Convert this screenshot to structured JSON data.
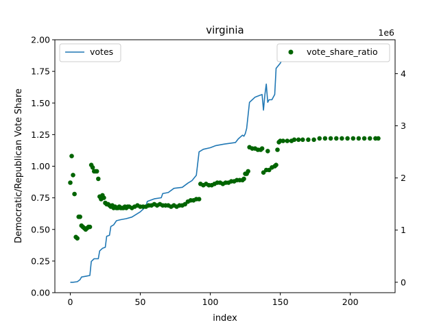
{
  "chart_data": {
    "type": "line",
    "title": "virginia",
    "xlabel": "index",
    "ylabel": "Democratic/Republican Vote Share",
    "y2_multiplier": "1e6",
    "xlim": [
      -11,
      232
    ],
    "ylim": [
      0,
      2.0
    ],
    "y2lim": [
      -0.2,
      4.65
    ],
    "x_ticks": [
      0,
      50,
      100,
      150,
      200
    ],
    "x_tick_labels": [
      "0",
      "50",
      "100",
      "150",
      "200"
    ],
    "y_ticks": [
      0,
      0.25,
      0.5,
      0.75,
      1.0,
      1.25,
      1.5,
      1.75,
      2.0
    ],
    "y_tick_labels": [
      "0.00",
      "0.25",
      "0.50",
      "0.75",
      "1.00",
      "1.25",
      "1.50",
      "1.75",
      "2.00"
    ],
    "y2_ticks": [
      0,
      1,
      2,
      3,
      4
    ],
    "y2_tick_labels": [
      "0",
      "1",
      "2",
      "3",
      "4"
    ],
    "grid": false,
    "legend": [
      {
        "label": "votes",
        "position": "upper-left",
        "marker": "line",
        "color": "#1f77b4"
      },
      {
        "label": "vote_share_ratio",
        "position": "upper-right",
        "marker": "dot",
        "color": "#006400"
      }
    ],
    "series": [
      {
        "name": "votes",
        "kind": "line",
        "axis": "right",
        "color": "#1f77b4",
        "points": [
          [
            0,
            0.0
          ],
          [
            2,
            0.0
          ],
          [
            5,
            0.01
          ],
          [
            7,
            0.05
          ],
          [
            8,
            0.1
          ],
          [
            12,
            0.12
          ],
          [
            14,
            0.13
          ],
          [
            15,
            0.4
          ],
          [
            17,
            0.45
          ],
          [
            20,
            0.45
          ],
          [
            21,
            0.6
          ],
          [
            23,
            0.65
          ],
          [
            25,
            0.67
          ],
          [
            26,
            0.88
          ],
          [
            28,
            0.9
          ],
          [
            29,
            1.07
          ],
          [
            31,
            1.1
          ],
          [
            33,
            1.18
          ],
          [
            36,
            1.2
          ],
          [
            40,
            1.22
          ],
          [
            44,
            1.25
          ],
          [
            50,
            1.35
          ],
          [
            54,
            1.45
          ],
          [
            55,
            1.55
          ],
          [
            60,
            1.6
          ],
          [
            65,
            1.62
          ],
          [
            66,
            1.7
          ],
          [
            70,
            1.72
          ],
          [
            74,
            1.8
          ],
          [
            80,
            1.82
          ],
          [
            84,
            1.9
          ],
          [
            87,
            1.95
          ],
          [
            90,
            2.05
          ],
          [
            92,
            2.5
          ],
          [
            95,
            2.55
          ],
          [
            100,
            2.58
          ],
          [
            104,
            2.62
          ],
          [
            110,
            2.65
          ],
          [
            118,
            2.68
          ],
          [
            120,
            2.75
          ],
          [
            123,
            2.82
          ],
          [
            124,
            2.8
          ],
          [
            125,
            2.85
          ],
          [
            126,
            2.95
          ],
          [
            128,
            3.45
          ],
          [
            130,
            3.5
          ],
          [
            132,
            3.55
          ],
          [
            135,
            3.58
          ],
          [
            137,
            3.6
          ],
          [
            138,
            3.3
          ],
          [
            139,
            3.6
          ],
          [
            140,
            3.8
          ],
          [
            141,
            3.45
          ],
          [
            142,
            3.5
          ],
          [
            144,
            3.5
          ],
          [
            146,
            3.6
          ],
          [
            147,
            4.1
          ],
          [
            150,
            4.2
          ],
          [
            152,
            4.3
          ],
          [
            156,
            4.32
          ],
          [
            160,
            4.33
          ],
          [
            170,
            4.35
          ],
          [
            180,
            4.37
          ],
          [
            190,
            4.38
          ],
          [
            200,
            4.38
          ],
          [
            210,
            4.39
          ],
          [
            220,
            4.4
          ]
        ]
      },
      {
        "name": "vote_share_ratio",
        "kind": "scatter",
        "axis": "left",
        "color": "#006400",
        "points": [
          [
            0,
            0.87
          ],
          [
            1,
            1.08
          ],
          [
            2,
            0.93
          ],
          [
            3,
            0.78
          ],
          [
            4,
            0.44
          ],
          [
            5,
            0.43
          ],
          [
            6,
            0.6
          ],
          [
            7,
            0.6
          ],
          [
            8,
            0.53
          ],
          [
            9,
            0.52
          ],
          [
            10,
            0.51
          ],
          [
            11,
            0.5
          ],
          [
            12,
            0.51
          ],
          [
            13,
            0.52
          ],
          [
            14,
            0.52
          ],
          [
            15,
            1.01
          ],
          [
            16,
            0.99
          ],
          [
            17,
            0.96
          ],
          [
            18,
            0.96
          ],
          [
            19,
            0.96
          ],
          [
            20,
            0.9
          ],
          [
            21,
            0.76
          ],
          [
            22,
            0.74
          ],
          [
            23,
            0.77
          ],
          [
            24,
            0.75
          ],
          [
            25,
            0.71
          ],
          [
            26,
            0.7
          ],
          [
            27,
            0.7
          ],
          [
            28,
            0.69
          ],
          [
            29,
            0.68
          ],
          [
            30,
            0.69
          ],
          [
            31,
            0.67
          ],
          [
            32,
            0.68
          ],
          [
            33,
            0.67
          ],
          [
            34,
            0.67
          ],
          [
            35,
            0.68
          ],
          [
            36,
            0.67
          ],
          [
            37,
            0.67
          ],
          [
            38,
            0.67
          ],
          [
            39,
            0.68
          ],
          [
            40,
            0.67
          ],
          [
            41,
            0.68
          ],
          [
            42,
            0.68
          ],
          [
            44,
            0.67
          ],
          [
            46,
            0.68
          ],
          [
            48,
            0.69
          ],
          [
            50,
            0.68
          ],
          [
            52,
            0.68
          ],
          [
            54,
            0.68
          ],
          [
            56,
            0.69
          ],
          [
            58,
            0.69
          ],
          [
            60,
            0.7
          ],
          [
            62,
            0.69
          ],
          [
            64,
            0.7
          ],
          [
            66,
            0.69
          ],
          [
            68,
            0.69
          ],
          [
            70,
            0.69
          ],
          [
            72,
            0.68
          ],
          [
            74,
            0.69
          ],
          [
            76,
            0.68
          ],
          [
            78,
            0.69
          ],
          [
            80,
            0.69
          ],
          [
            82,
            0.7
          ],
          [
            84,
            0.72
          ],
          [
            86,
            0.73
          ],
          [
            88,
            0.73
          ],
          [
            90,
            0.74
          ],
          [
            92,
            0.74
          ],
          [
            93,
            0.86
          ],
          [
            95,
            0.85
          ],
          [
            97,
            0.86
          ],
          [
            99,
            0.85
          ],
          [
            101,
            0.85
          ],
          [
            103,
            0.86
          ],
          [
            105,
            0.87
          ],
          [
            107,
            0.87
          ],
          [
            109,
            0.86
          ],
          [
            111,
            0.87
          ],
          [
            113,
            0.87
          ],
          [
            115,
            0.88
          ],
          [
            117,
            0.88
          ],
          [
            119,
            0.89
          ],
          [
            121,
            0.89
          ],
          [
            123,
            0.89
          ],
          [
            124,
            0.9
          ],
          [
            125,
            0.94
          ],
          [
            126,
            0.94
          ],
          [
            127,
            0.96
          ],
          [
            128,
            1.15
          ],
          [
            130,
            1.14
          ],
          [
            132,
            1.14
          ],
          [
            134,
            1.13
          ],
          [
            136,
            1.13
          ],
          [
            137,
            1.14
          ],
          [
            138,
            0.95
          ],
          [
            140,
            0.97
          ],
          [
            141,
            1.12
          ],
          [
            142,
            0.97
          ],
          [
            144,
            0.99
          ],
          [
            146,
            1.0
          ],
          [
            147,
            1.01
          ],
          [
            148,
            1.13
          ],
          [
            149,
            1.19
          ],
          [
            150,
            1.2
          ],
          [
            152,
            1.2
          ],
          [
            155,
            1.2
          ],
          [
            158,
            1.2
          ],
          [
            160,
            1.21
          ],
          [
            163,
            1.21
          ],
          [
            166,
            1.21
          ],
          [
            170,
            1.21
          ],
          [
            174,
            1.21
          ],
          [
            178,
            1.22
          ],
          [
            182,
            1.22
          ],
          [
            186,
            1.22
          ],
          [
            190,
            1.22
          ],
          [
            194,
            1.22
          ],
          [
            198,
            1.22
          ],
          [
            202,
            1.22
          ],
          [
            206,
            1.22
          ],
          [
            210,
            1.22
          ],
          [
            214,
            1.22
          ],
          [
            218,
            1.22
          ],
          [
            220,
            1.22
          ]
        ]
      }
    ]
  }
}
